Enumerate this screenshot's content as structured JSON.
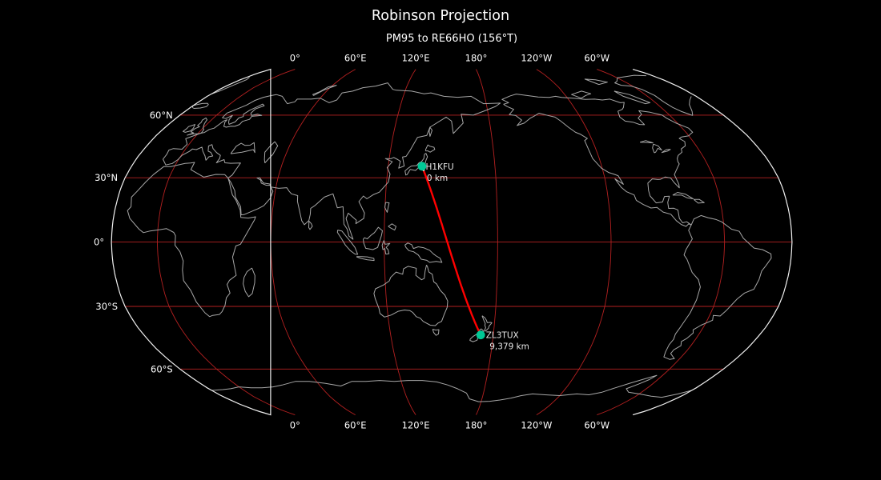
{
  "title": "Robinson Projection",
  "subtitle": "PM95 to RE66HO (156°T)",
  "map": {
    "projection_name": "Robinson",
    "central_longitude": 155.7,
    "top_longitude_labels": [
      "0°",
      "60°E",
      "120°E",
      "180°",
      "120°W",
      "60°W"
    ],
    "bottom_longitude_labels": [
      "0°",
      "60°E",
      "120°E",
      "180°",
      "120°W",
      "60°W"
    ],
    "left_latitude_labels": [
      "60°N",
      "30°N",
      "0°",
      "30°S",
      "60°S"
    ],
    "graticule_longitudes": [
      0,
      60,
      120,
      180,
      -120,
      -60
    ],
    "graticule_latitudes": [
      60,
      30,
      0,
      -30,
      -60
    ]
  },
  "route": {
    "from_grid": "PM95",
    "to_grid": "RE66HO",
    "bearing": "156°T",
    "stations": [
      {
        "callsign": "JH1KFU",
        "distance_label": "0 km",
        "lat": 35.4,
        "lon": 139.0
      },
      {
        "callsign": "ZL3TUX",
        "distance_label": "9,379 km",
        "lat": -43.4,
        "lon": 172.65
      }
    ]
  },
  "colors": {
    "background": "#000000",
    "graticule": "#b42020",
    "great_circle": "#ff0000",
    "marker": "#00c896",
    "coastline": "#a6a6a6",
    "outline": "#f0f0f0",
    "text": "#ffffff",
    "station_text": "#e8e8e8"
  }
}
